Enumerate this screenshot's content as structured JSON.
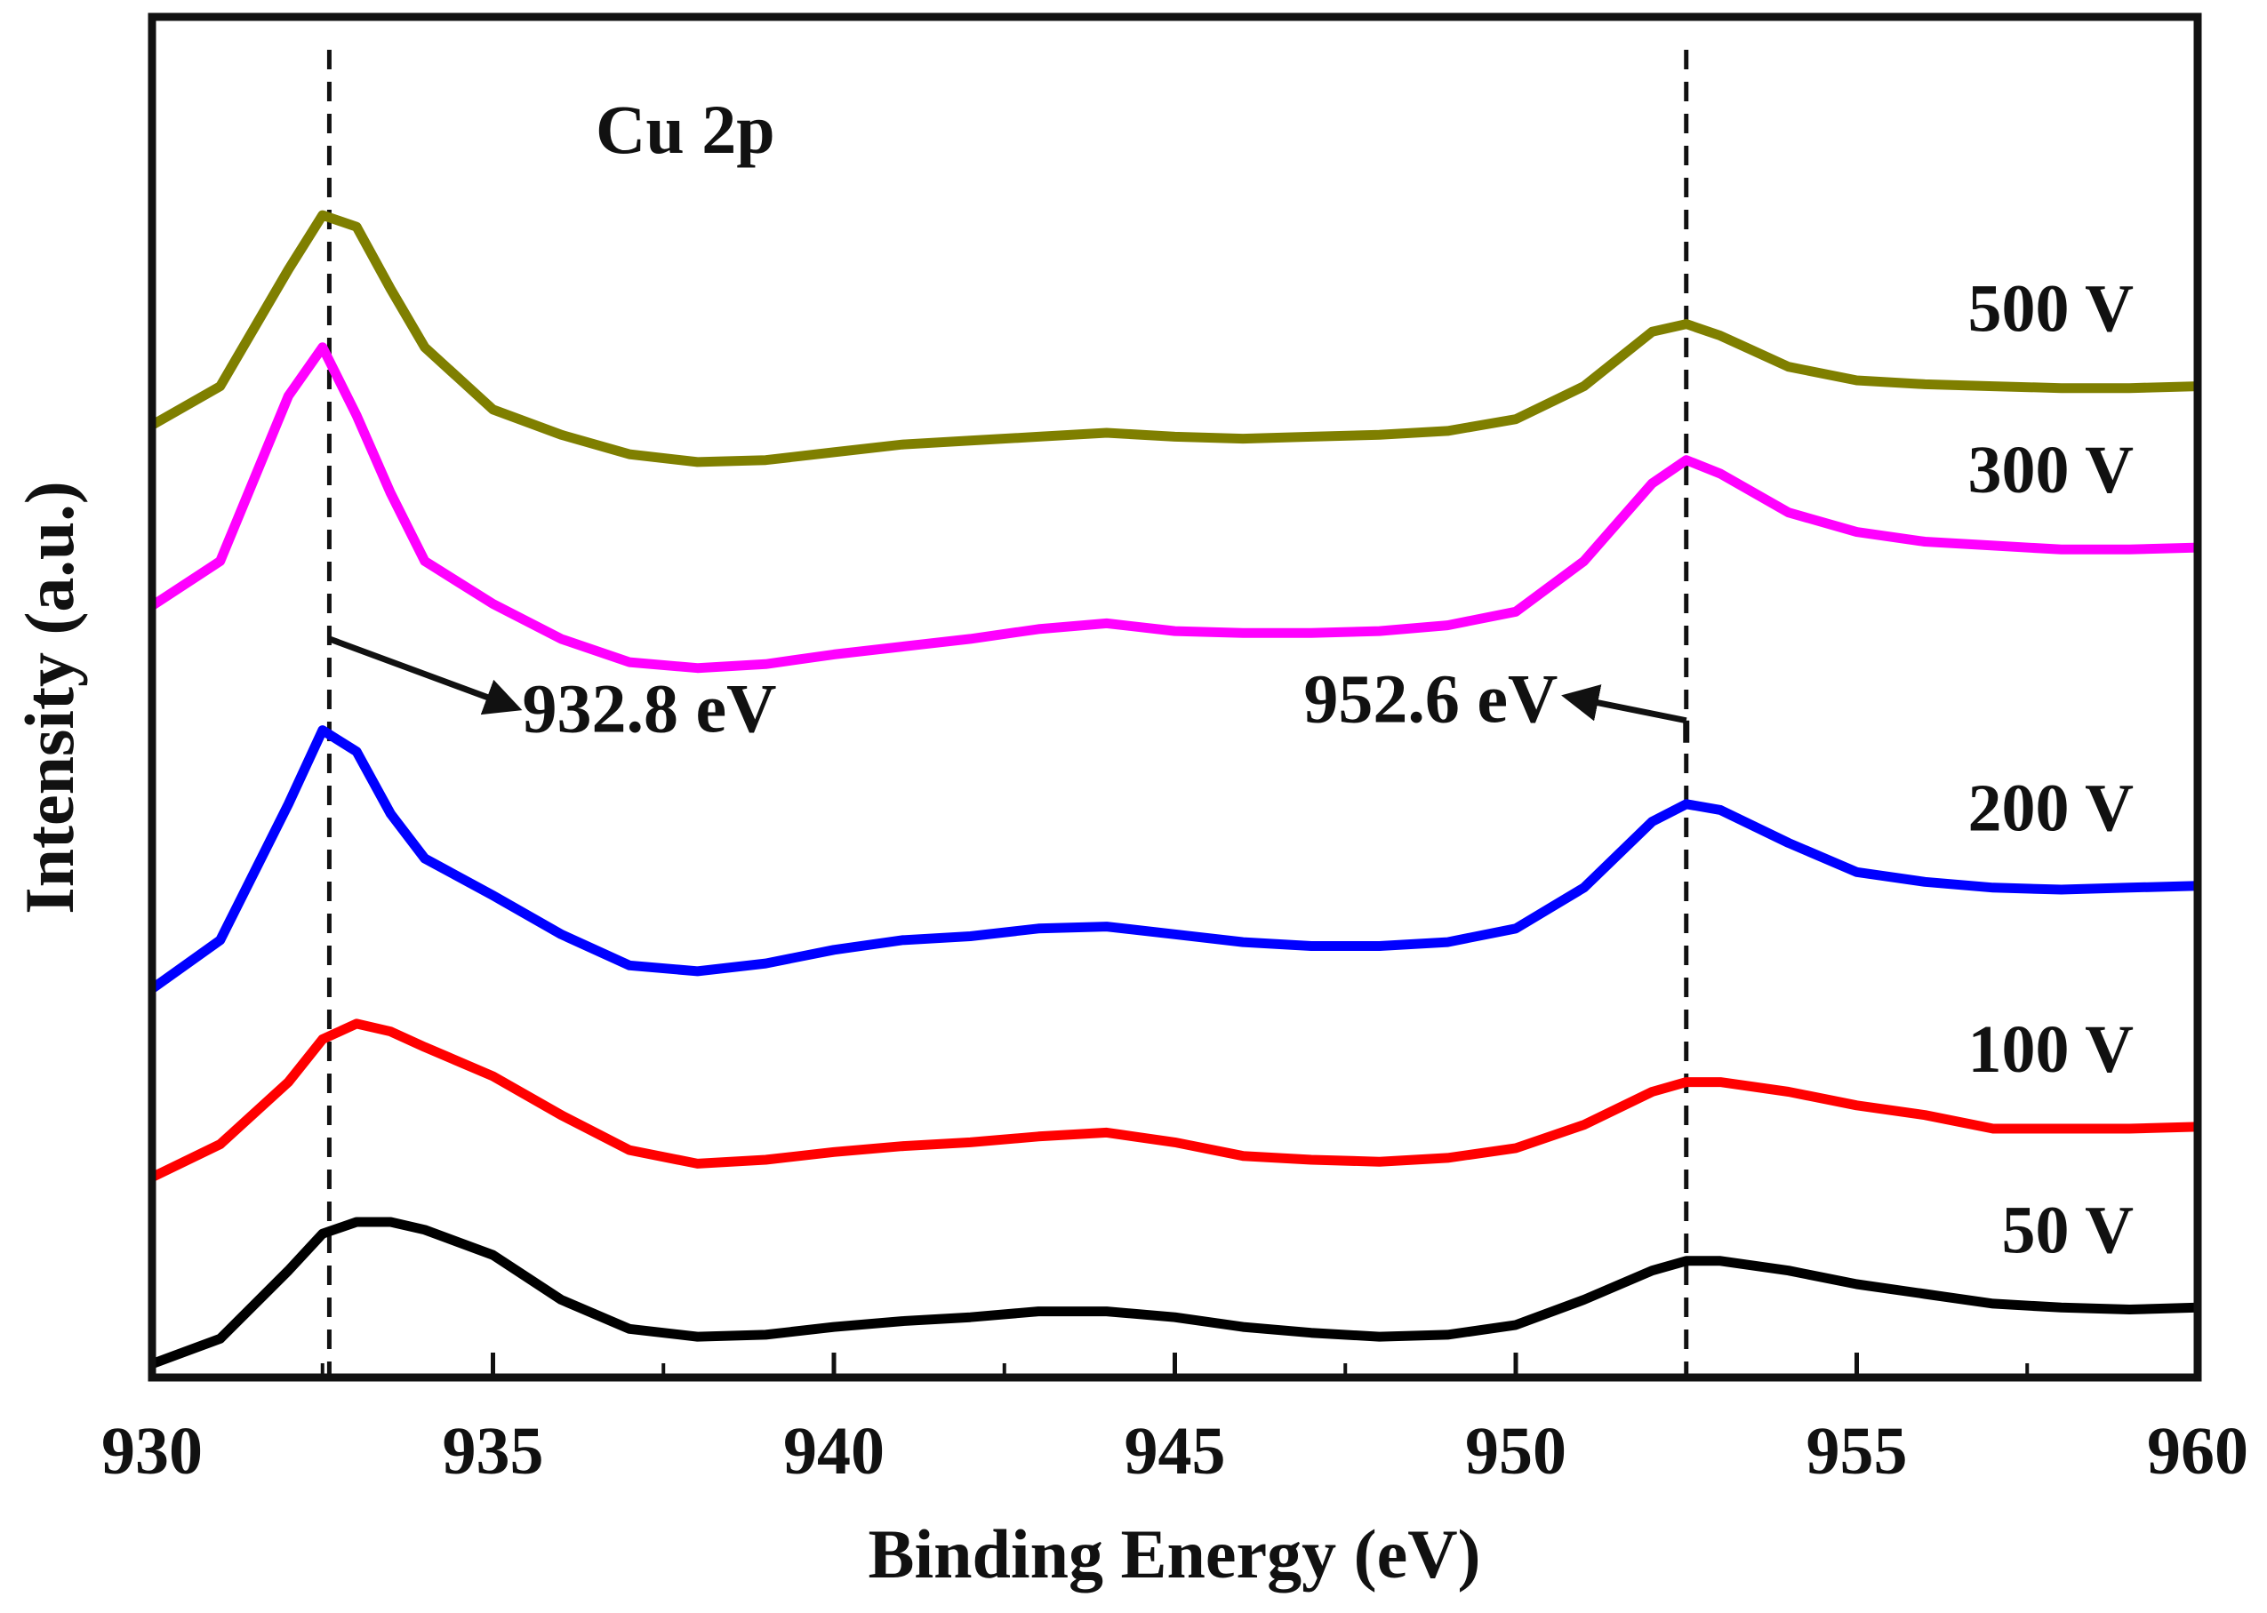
{
  "chart_data": {
    "type": "line",
    "title": "Cu 2p",
    "xlabel": "Binding Energy (eV)",
    "ylabel": "Intensity (a.u.)",
    "xlim": [
      930,
      960
    ],
    "ylim": [
      0,
      7
    ],
    "x_ticks": [
      930,
      935,
      940,
      945,
      950,
      955,
      960
    ],
    "x_tick_labels": [
      "930",
      "935",
      "940",
      "945",
      "950",
      "955",
      "960"
    ],
    "y_ticks_visible": false,
    "grid": false,
    "reference_lines": [
      {
        "name": "peak-932.8",
        "x": 932.6,
        "style": "dashed"
      },
      {
        "name": "peak-952.6",
        "x": 952.5,
        "style": "dashed"
      }
    ],
    "annotations": [
      {
        "text": "932.8 eV",
        "arrow_from": [
          932.6,
          3.8
        ],
        "arrow_to": [
          935.3,
          3.45
        ]
      },
      {
        "text": "952.6 eV",
        "arrow_from": [
          952.5,
          3.38
        ],
        "arrow_to": [
          950.8,
          3.5
        ]
      }
    ],
    "series": [
      {
        "name": "50 V",
        "color": "#000000",
        "x": [
          930,
          931,
          932,
          932.5,
          933,
          933.5,
          934,
          935,
          936,
          937,
          938,
          939,
          940,
          941,
          942,
          943,
          944,
          945,
          946,
          947,
          948,
          949,
          950,
          951,
          952,
          952.5,
          953,
          954,
          955,
          956,
          957,
          958,
          959,
          960
        ],
        "values": [
          0.07,
          0.2,
          0.55,
          0.74,
          0.8,
          0.8,
          0.76,
          0.63,
          0.4,
          0.25,
          0.21,
          0.22,
          0.26,
          0.29,
          0.31,
          0.34,
          0.34,
          0.31,
          0.26,
          0.23,
          0.21,
          0.22,
          0.27,
          0.4,
          0.55,
          0.6,
          0.6,
          0.55,
          0.48,
          0.43,
          0.38,
          0.36,
          0.35,
          0.36
        ]
      },
      {
        "name": "100 V",
        "color": "#ff0000",
        "x": [
          930,
          931,
          932,
          932.5,
          933,
          933.5,
          934,
          935,
          936,
          937,
          938,
          939,
          940,
          941,
          942,
          943,
          944,
          945,
          946,
          947,
          948,
          949,
          950,
          951,
          952,
          952.5,
          953,
          954,
          955,
          956,
          957,
          958,
          959,
          960
        ],
        "values": [
          1.03,
          1.2,
          1.52,
          1.74,
          1.82,
          1.78,
          1.7,
          1.55,
          1.35,
          1.17,
          1.1,
          1.12,
          1.16,
          1.19,
          1.21,
          1.24,
          1.26,
          1.21,
          1.14,
          1.12,
          1.11,
          1.13,
          1.18,
          1.3,
          1.47,
          1.52,
          1.52,
          1.47,
          1.4,
          1.35,
          1.28,
          1.28,
          1.28,
          1.29
        ]
      },
      {
        "name": "200 V",
        "color": "#0000ff",
        "x": [
          930,
          931,
          932,
          932.5,
          933,
          933.5,
          934,
          935,
          936,
          937,
          938,
          939,
          940,
          941,
          942,
          943,
          944,
          945,
          946,
          947,
          948,
          949,
          950,
          951,
          952,
          952.5,
          953,
          954,
          955,
          956,
          957,
          958,
          959,
          960
        ],
        "values": [
          2.0,
          2.25,
          2.95,
          3.33,
          3.22,
          2.9,
          2.67,
          2.48,
          2.28,
          2.12,
          2.09,
          2.13,
          2.2,
          2.25,
          2.27,
          2.31,
          2.32,
          2.28,
          2.24,
          2.22,
          2.22,
          2.24,
          2.31,
          2.52,
          2.86,
          2.95,
          2.92,
          2.75,
          2.6,
          2.55,
          2.52,
          2.51,
          2.52,
          2.53
        ]
      },
      {
        "name": "300 V",
        "color": "#ff00ff",
        "x": [
          930,
          931,
          932,
          932.5,
          933,
          933.5,
          934,
          935,
          936,
          937,
          938,
          939,
          940,
          941,
          942,
          943,
          944,
          945,
          946,
          947,
          948,
          949,
          950,
          951,
          952,
          952.5,
          953,
          954,
          955,
          956,
          957,
          958,
          959,
          960
        ],
        "values": [
          3.97,
          4.2,
          5.05,
          5.3,
          4.95,
          4.55,
          4.2,
          3.98,
          3.8,
          3.68,
          3.65,
          3.67,
          3.72,
          3.76,
          3.8,
          3.85,
          3.88,
          3.84,
          3.83,
          3.83,
          3.84,
          3.87,
          3.94,
          4.2,
          4.6,
          4.72,
          4.65,
          4.45,
          4.35,
          4.3,
          4.28,
          4.26,
          4.26,
          4.27
        ]
      },
      {
        "name": "500 V",
        "color": "#7f7f00",
        "x": [
          930,
          931,
          932,
          932.5,
          933,
          933.5,
          934,
          935,
          936,
          937,
          938,
          939,
          940,
          941,
          942,
          943,
          944,
          945,
          946,
          947,
          948,
          949,
          950,
          951,
          952,
          952.5,
          953,
          954,
          955,
          956,
          957,
          958,
          959,
          960
        ],
        "values": [
          4.9,
          5.1,
          5.7,
          5.98,
          5.92,
          5.6,
          5.3,
          4.98,
          4.85,
          4.75,
          4.71,
          4.72,
          4.76,
          4.8,
          4.82,
          4.84,
          4.86,
          4.84,
          4.83,
          4.84,
          4.85,
          4.87,
          4.93,
          5.1,
          5.38,
          5.42,
          5.36,
          5.2,
          5.13,
          5.11,
          5.1,
          5.09,
          5.09,
          5.1
        ]
      }
    ]
  }
}
